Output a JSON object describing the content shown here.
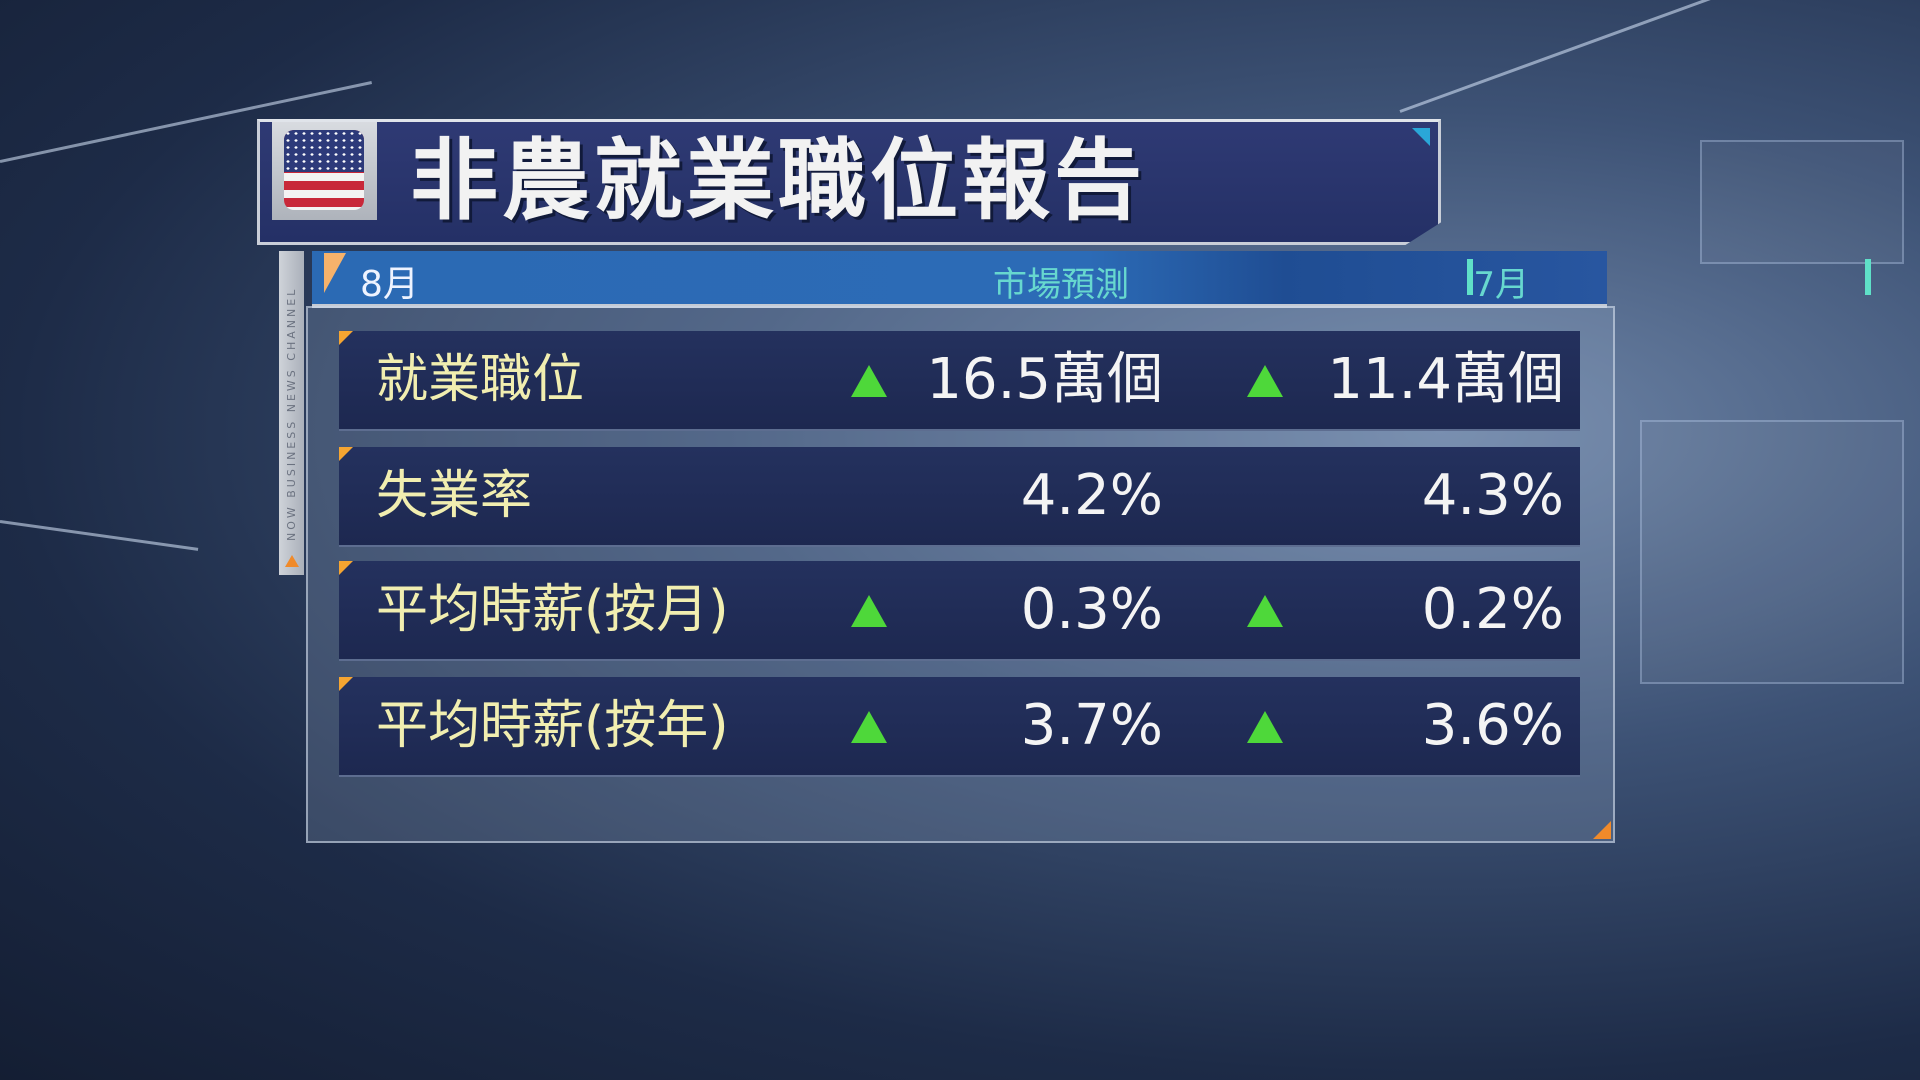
{
  "title": "非農就業職位報告",
  "flag_icon": "us-flag-icon",
  "channel_text": "NOW BUSINESS NEWS CHANNEL",
  "header": {
    "month": "8月",
    "forecast_label": "市場預測",
    "prev_label": "7月"
  },
  "colors": {
    "accent_green": "#4ed83a",
    "label_yellow": "#f1eeb0",
    "header_teal": "#67d8cf",
    "orange": "#f08a2a"
  },
  "rows": [
    {
      "label": "就業職位",
      "forecast": "16.5萬個",
      "forecast_arrow": "up",
      "previous": "11.4萬個",
      "previous_arrow": "up"
    },
    {
      "label": "失業率",
      "forecast": "4.2%",
      "forecast_arrow": "none",
      "previous": "4.3%",
      "previous_arrow": "none"
    },
    {
      "label": "平均時薪(按月)",
      "forecast": "0.3%",
      "forecast_arrow": "up",
      "previous": "0.2%",
      "previous_arrow": "up"
    },
    {
      "label": "平均時薪(按年)",
      "forecast": "3.7%",
      "forecast_arrow": "up",
      "previous": "3.6%",
      "previous_arrow": "up"
    }
  ]
}
